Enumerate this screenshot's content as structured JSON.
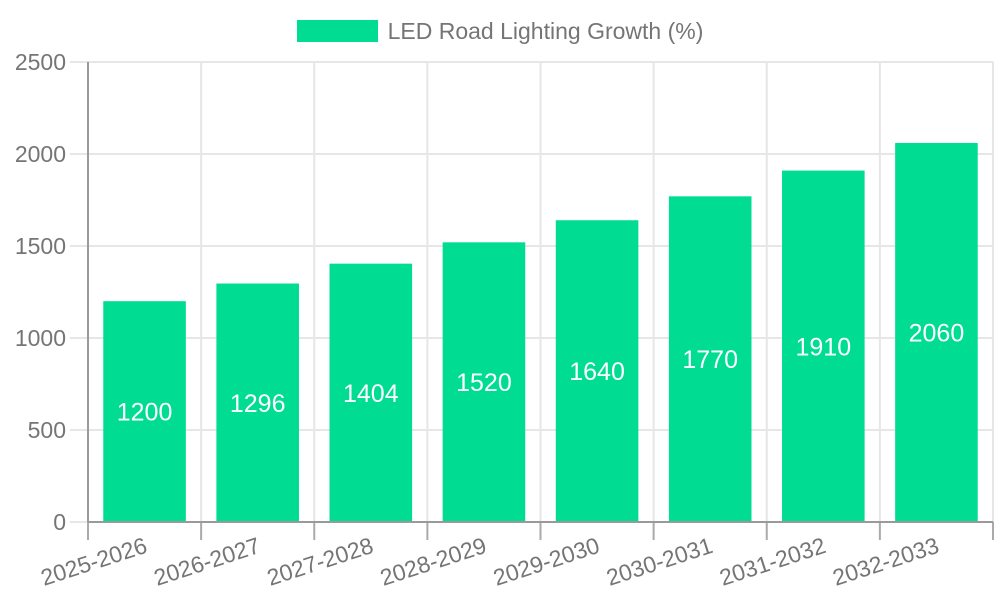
{
  "legend": {
    "label": "LED Road Lighting Growth (%)"
  },
  "chart_data": {
    "type": "bar",
    "title": "",
    "categories": [
      "2025-2026",
      "2026-2027",
      "2027-2028",
      "2028-2029",
      "2029-2030",
      "2030-2031",
      "2031-2032",
      "2032-2033"
    ],
    "series": [
      {
        "name": "LED Road Lighting Growth (%)",
        "values": [
          1200,
          1296,
          1404,
          1520,
          1640,
          1770,
          1910,
          2060
        ]
      }
    ],
    "value_labels": [
      "1200",
      "1296",
      "1404",
      "1520",
      "1640",
      "1770",
      "1910",
      "2060"
    ],
    "xlabel": "",
    "ylabel": "",
    "ylim": [
      0,
      2500
    ],
    "yticks": [
      0,
      500,
      1000,
      1500,
      2000,
      2500
    ],
    "grid": true,
    "legend_position": "top",
    "x_label_rotation_deg": -18,
    "colors": {
      "bar": "#00DC92",
      "value_label": "#ffffff",
      "axis_text": "#757575",
      "axis_line": "#9a9a9a",
      "gridline": "#e6e6e6",
      "x_tick": "#aaaaaa",
      "background": "#ffffff"
    }
  }
}
